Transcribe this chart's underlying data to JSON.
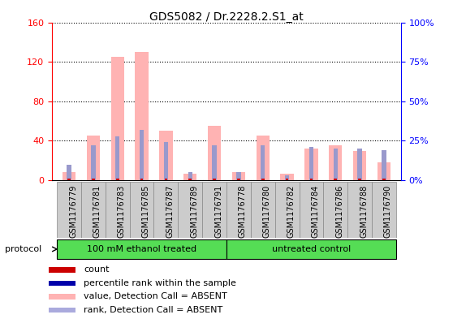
{
  "title": "GDS5082 / Dr.2228.2.S1_at",
  "samples": [
    "GSM1176779",
    "GSM1176781",
    "GSM1176783",
    "GSM1176785",
    "GSM1176787",
    "GSM1176789",
    "GSM1176791",
    "GSM1176778",
    "GSM1176780",
    "GSM1176782",
    "GSM1176784",
    "GSM1176786",
    "GSM1176788",
    "GSM1176790"
  ],
  "pink_values": [
    8,
    45,
    125,
    130,
    50,
    7,
    55,
    8,
    45,
    7,
    32,
    35,
    30,
    18
  ],
  "blue_rank": [
    10,
    22,
    28,
    32,
    24,
    5,
    22,
    5,
    22,
    3,
    21,
    20,
    20,
    19
  ],
  "red_count": [
    2,
    2,
    2,
    2,
    2,
    2,
    2,
    2,
    2,
    2,
    2,
    2,
    2,
    2
  ],
  "left_ylim": [
    0,
    160
  ],
  "right_ylim": [
    0,
    100
  ],
  "left_yticks": [
    0,
    40,
    80,
    120,
    160
  ],
  "right_yticks": [
    0,
    25,
    50,
    75,
    100
  ],
  "right_yticklabels": [
    "0%",
    "25%",
    "50%",
    "75%",
    "100%"
  ],
  "pink_color": "#FFB3B3",
  "blue_color": "#9999CC",
  "red_color": "#CC0000",
  "darkblue_color": "#0000AA",
  "group1_label": "100 mM ethanol treated",
  "group2_label": "untreated control",
  "group1_count": 7,
  "group2_count": 7,
  "group_bg_color": "#55DD55",
  "label_bg_color": "#CCCCCC",
  "protocol_label": "protocol",
  "legend_items": [
    {
      "label": "count",
      "color": "#CC0000"
    },
    {
      "label": "percentile rank within the sample",
      "color": "#0000AA"
    },
    {
      "label": "value, Detection Call = ABSENT",
      "color": "#FFB3B3"
    },
    {
      "label": "rank, Detection Call = ABSENT",
      "color": "#AAAADD"
    }
  ],
  "bar_width": 0.35,
  "chart_bg_color": "#FFFFFF",
  "pink_bar_width": 0.55,
  "blue_bar_width": 0.18,
  "red_bar_width": 0.12
}
